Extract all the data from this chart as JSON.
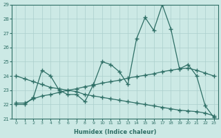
{
  "xlabel": "Humidex (Indice chaleur)",
  "bg_color": "#cce9e5",
  "grid_color": "#aacfcc",
  "line_color": "#2d6e65",
  "xlim": [
    -0.5,
    23.5
  ],
  "ylim": [
    21,
    29
  ],
  "yticks": [
    21,
    22,
    23,
    24,
    25,
    26,
    27,
    28,
    29
  ],
  "xticks": [
    0,
    1,
    2,
    3,
    4,
    5,
    6,
    7,
    8,
    9,
    10,
    11,
    12,
    13,
    14,
    15,
    16,
    17,
    18,
    19,
    20,
    21,
    22,
    23
  ],
  "line1_x": [
    0,
    1,
    2,
    3,
    4,
    5,
    6,
    7,
    8,
    9,
    10,
    11,
    12,
    13,
    14,
    15,
    16,
    17,
    18,
    19,
    20,
    21,
    22,
    23
  ],
  "line1_y": [
    22.0,
    22.0,
    22.5,
    24.4,
    24.0,
    23.0,
    22.7,
    22.7,
    22.2,
    23.4,
    25.0,
    24.8,
    24.3,
    23.4,
    26.6,
    28.1,
    27.2,
    29.0,
    27.3,
    24.5,
    24.8,
    24.0,
    21.9,
    21.1
  ],
  "line2_x": [
    0,
    1,
    2,
    3,
    4,
    5,
    6,
    7,
    8,
    9,
    10,
    11,
    12,
    13,
    14,
    15,
    16,
    17,
    18,
    19,
    20,
    21,
    22,
    23
  ],
  "line2_y": [
    22.1,
    22.1,
    22.4,
    22.6,
    22.7,
    22.85,
    23.0,
    23.1,
    23.25,
    23.35,
    23.5,
    23.6,
    23.7,
    23.85,
    23.95,
    24.05,
    24.15,
    24.3,
    24.4,
    24.5,
    24.55,
    24.4,
    24.2,
    24.0
  ],
  "line3_x": [
    0,
    1,
    2,
    3,
    4,
    5,
    6,
    7,
    8,
    9,
    10,
    11,
    12,
    13,
    14,
    15,
    16,
    17,
    18,
    19,
    20,
    21,
    22,
    23
  ],
  "line3_y": [
    24.0,
    23.8,
    23.6,
    23.4,
    23.2,
    23.1,
    23.0,
    22.9,
    22.7,
    22.6,
    22.5,
    22.4,
    22.3,
    22.2,
    22.1,
    22.0,
    21.9,
    21.8,
    21.7,
    21.6,
    21.55,
    21.5,
    21.4,
    21.2
  ]
}
